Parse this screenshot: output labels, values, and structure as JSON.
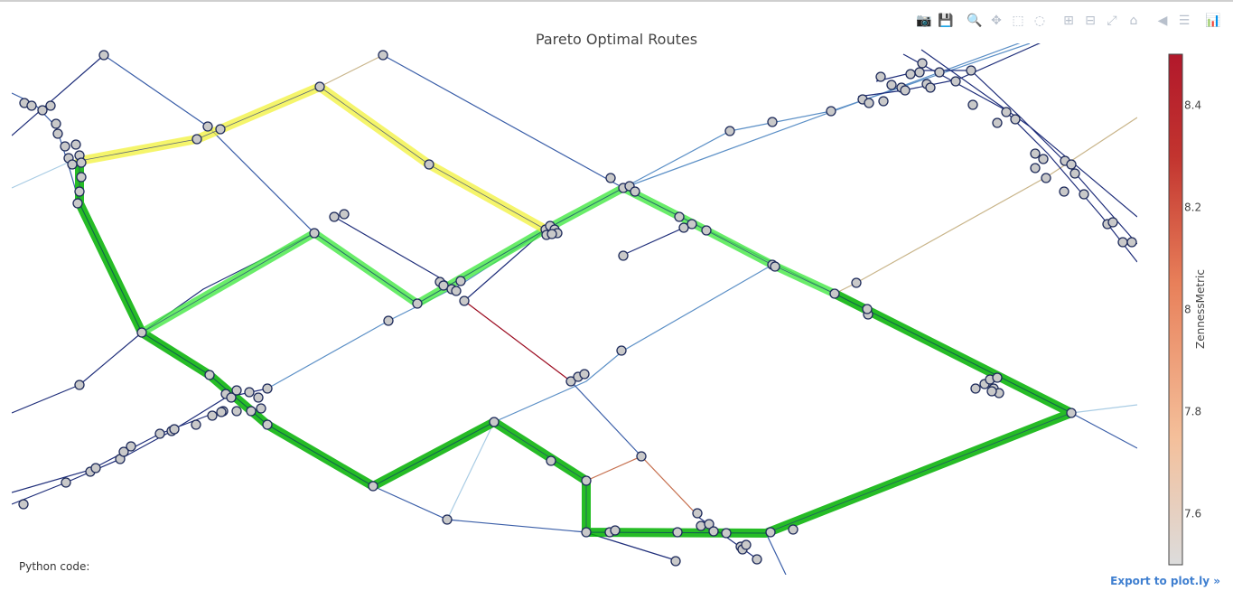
{
  "modebar": {
    "buttons": [
      {
        "name": "camera-icon",
        "glyph": "📷"
      },
      {
        "name": "save-icon",
        "glyph": "💾"
      },
      {
        "name": "zoom-icon",
        "glyph": "🔍"
      },
      {
        "name": "pan-icon",
        "glyph": "✥"
      },
      {
        "name": "box-select-icon",
        "glyph": "⬚"
      },
      {
        "name": "lasso-select-icon",
        "glyph": "◌"
      },
      {
        "name": "zoom-in-icon",
        "glyph": "⊞"
      },
      {
        "name": "zoom-out-icon",
        "glyph": "⊟"
      },
      {
        "name": "autoscale-icon",
        "glyph": "⤢"
      },
      {
        "name": "reset-axes-icon",
        "glyph": "⌂"
      },
      {
        "name": "spike-lines-icon",
        "glyph": "◀"
      },
      {
        "name": "compare-hover-icon",
        "glyph": "☰"
      },
      {
        "name": "plotly-logo-icon",
        "glyph": "📊"
      }
    ]
  },
  "footer": {
    "python_code_label": "Python code:",
    "export_link": "Export to plot.ly »"
  },
  "chart_data": {
    "type": "network-route-map",
    "title": "Pareto Optimal Routes",
    "colorbar": {
      "title": "ZennessMetric",
      "ticks": [
        7.6,
        7.8,
        8,
        8.2,
        8.4
      ],
      "range": [
        7.5,
        8.5
      ],
      "colorscale": [
        "#dcdcdc",
        "#f4bf9a",
        "#e8805a",
        "#c2342f",
        "#b2182b"
      ]
    },
    "routes": [
      {
        "color": "#00b000",
        "opacity": 0.85,
        "width": 10
      },
      {
        "color": "#44e844",
        "opacity": 0.8,
        "width": 9
      },
      {
        "color": "#f2f23a",
        "opacity": 0.75,
        "width": 10
      }
    ],
    "edge_colors": [
      "#1f2e7a",
      "#3a5ea8",
      "#5b8fc6",
      "#a9cce4",
      "#c9b58a",
      "#c6704f",
      "#9b0a1f"
    ],
    "node_style": {
      "fill": "#c9c9c9",
      "stroke": "#1d2a5a"
    }
  }
}
